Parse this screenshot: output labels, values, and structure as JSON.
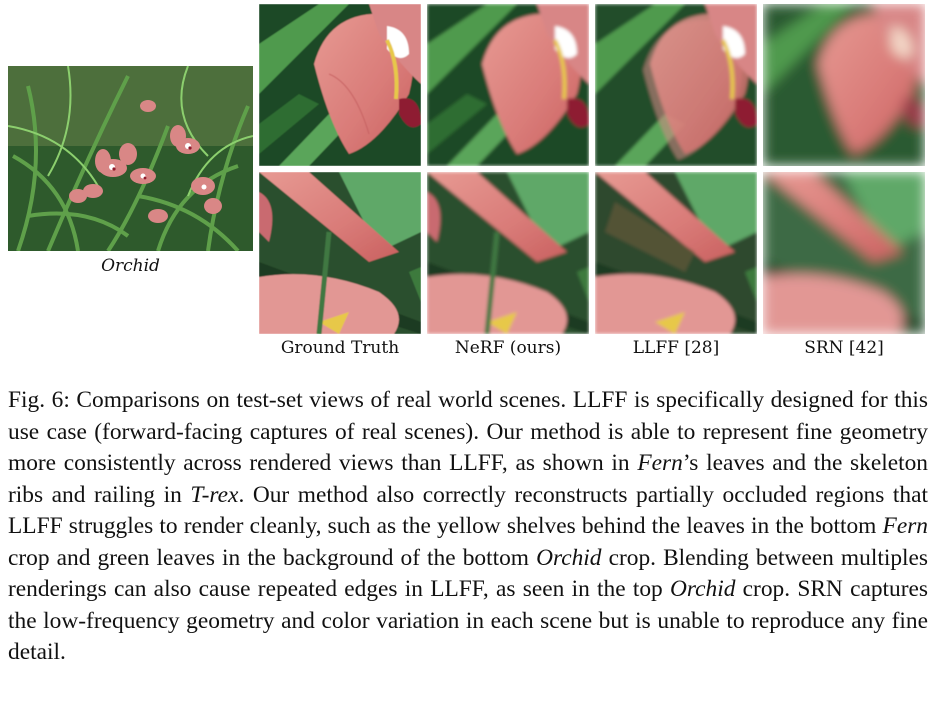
{
  "figure": {
    "scene_label": "Orchid",
    "columns": [
      {
        "key": "gt",
        "label": "Ground Truth"
      },
      {
        "key": "nerf",
        "label": "NeRF (ours)"
      },
      {
        "key": "llff",
        "label": "LLFF [28]"
      },
      {
        "key": "srn",
        "label": "SRN [42]"
      }
    ]
  },
  "caption": {
    "parts": [
      {
        "text": "Fig. 6: Comparisons on test-set views of real world scenes. LLFF is specifically designed for this use case (forward-facing captures of real scenes). Our method is able to represent fine geometry more consistently across rendered views than LLFF, as shown in ",
        "italic": false
      },
      {
        "text": "Fern",
        "italic": true
      },
      {
        "text": "’s leaves and the skeleton ribs and railing in ",
        "italic": false
      },
      {
        "text": "T-rex",
        "italic": true
      },
      {
        "text": ". Our method also correctly reconstructs partially occluded regions that LLFF struggles to render cleanly, such as the yellow shelves behind the leaves in the bottom ",
        "italic": false
      },
      {
        "text": "Fern",
        "italic": true
      },
      {
        "text": " crop and green leaves in the background of the bottom ",
        "italic": false
      },
      {
        "text": "Orchid",
        "italic": true
      },
      {
        "text": " crop. Blending between multiples renderings can also cause repeated edges in LLFF, as seen in the top ",
        "italic": false
      },
      {
        "text": "Orchid",
        "italic": true
      },
      {
        "text": " crop. SRN captures the low-frequency geometry and color variation in each scene but is unable to reproduce any fine detail.",
        "italic": false
      }
    ]
  }
}
